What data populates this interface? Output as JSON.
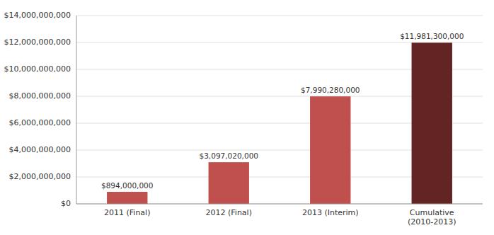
{
  "chart_data": {
    "type": "bar",
    "categories": [
      "2011 (Final)",
      "2012 (Final)",
      "2013 (Interim)",
      "Cumulative\n(2010-2013)"
    ],
    "values": [
      894000000,
      3097020000,
      7990280000,
      11981300000
    ],
    "value_labels": [
      "$894,000,000",
      "$3,097,020,000",
      "$7,990,280,000",
      "$11,981,300,000"
    ],
    "data_labels": true,
    "colors": [
      "#C0504D",
      "#C0504D",
      "#C0504D",
      "#632523"
    ],
    "ylim": [
      0,
      14000000000
    ],
    "yticks": [
      {
        "value": 0,
        "label": "$0"
      },
      {
        "value": 2000000000,
        "label": "$2,000,000,000"
      },
      {
        "value": 4000000000,
        "label": "$4,000,000,000"
      },
      {
        "value": 6000000000,
        "label": "$6,000,000,000"
      },
      {
        "value": 8000000000,
        "label": "$8,000,000,000"
      },
      {
        "value": 10000000000,
        "label": "$10,000,000,000"
      },
      {
        "value": 12000000000,
        "label": "$12,000,000,000"
      },
      {
        "value": 14000000000,
        "label": "$14,000,000,000"
      }
    ],
    "grid": true
  }
}
